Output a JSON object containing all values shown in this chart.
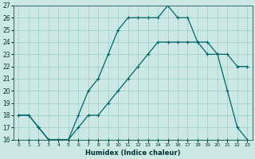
{
  "xlabel": "Humidex (Indice chaleur)",
  "bg_color": "#cce8e4",
  "grid_color": "#99cccc",
  "line_color": "#006666",
  "xlim": [
    -0.5,
    23.5
  ],
  "ylim": [
    16,
    27
  ],
  "xticks": [
    0,
    1,
    2,
    3,
    4,
    5,
    6,
    7,
    8,
    9,
    10,
    11,
    12,
    13,
    14,
    15,
    16,
    17,
    18,
    19,
    20,
    21,
    22,
    23
  ],
  "yticks": [
    16,
    17,
    18,
    19,
    20,
    21,
    22,
    23,
    24,
    25,
    26,
    27
  ],
  "line1_x": [
    0,
    1,
    2,
    3,
    4,
    5,
    6,
    7,
    8,
    9,
    10,
    11,
    12,
    13,
    14,
    15,
    16,
    17,
    18,
    19,
    20,
    21,
    22,
    23
  ],
  "line1_y": [
    16,
    16,
    16,
    16,
    16,
    16,
    16,
    16,
    16,
    16,
    16,
    16,
    16,
    16,
    16,
    16,
    16,
    16,
    16,
    16,
    16,
    16,
    16,
    16
  ],
  "line2_x": [
    0,
    1,
    2,
    3,
    4,
    5,
    6,
    7,
    8,
    9,
    10,
    11,
    12,
    13,
    14,
    15,
    16,
    17,
    18,
    19,
    20,
    21,
    22,
    23
  ],
  "line2_y": [
    18,
    18,
    17,
    16,
    16,
    16,
    17,
    18,
    18,
    19,
    20,
    21,
    22,
    23,
    24,
    24,
    24,
    24,
    24,
    24,
    23,
    23,
    22,
    22
  ],
  "line3_x": [
    0,
    1,
    2,
    3,
    4,
    5,
    6,
    7,
    8,
    9,
    10,
    11,
    12,
    13,
    14,
    15,
    16,
    17,
    18,
    19,
    20,
    21,
    22,
    23
  ],
  "line3_y": [
    18,
    18,
    17,
    16,
    16,
    16,
    18,
    20,
    21,
    23,
    25,
    26,
    26,
    26,
    26,
    27,
    26,
    26,
    24,
    23,
    23,
    20,
    17,
    16
  ]
}
